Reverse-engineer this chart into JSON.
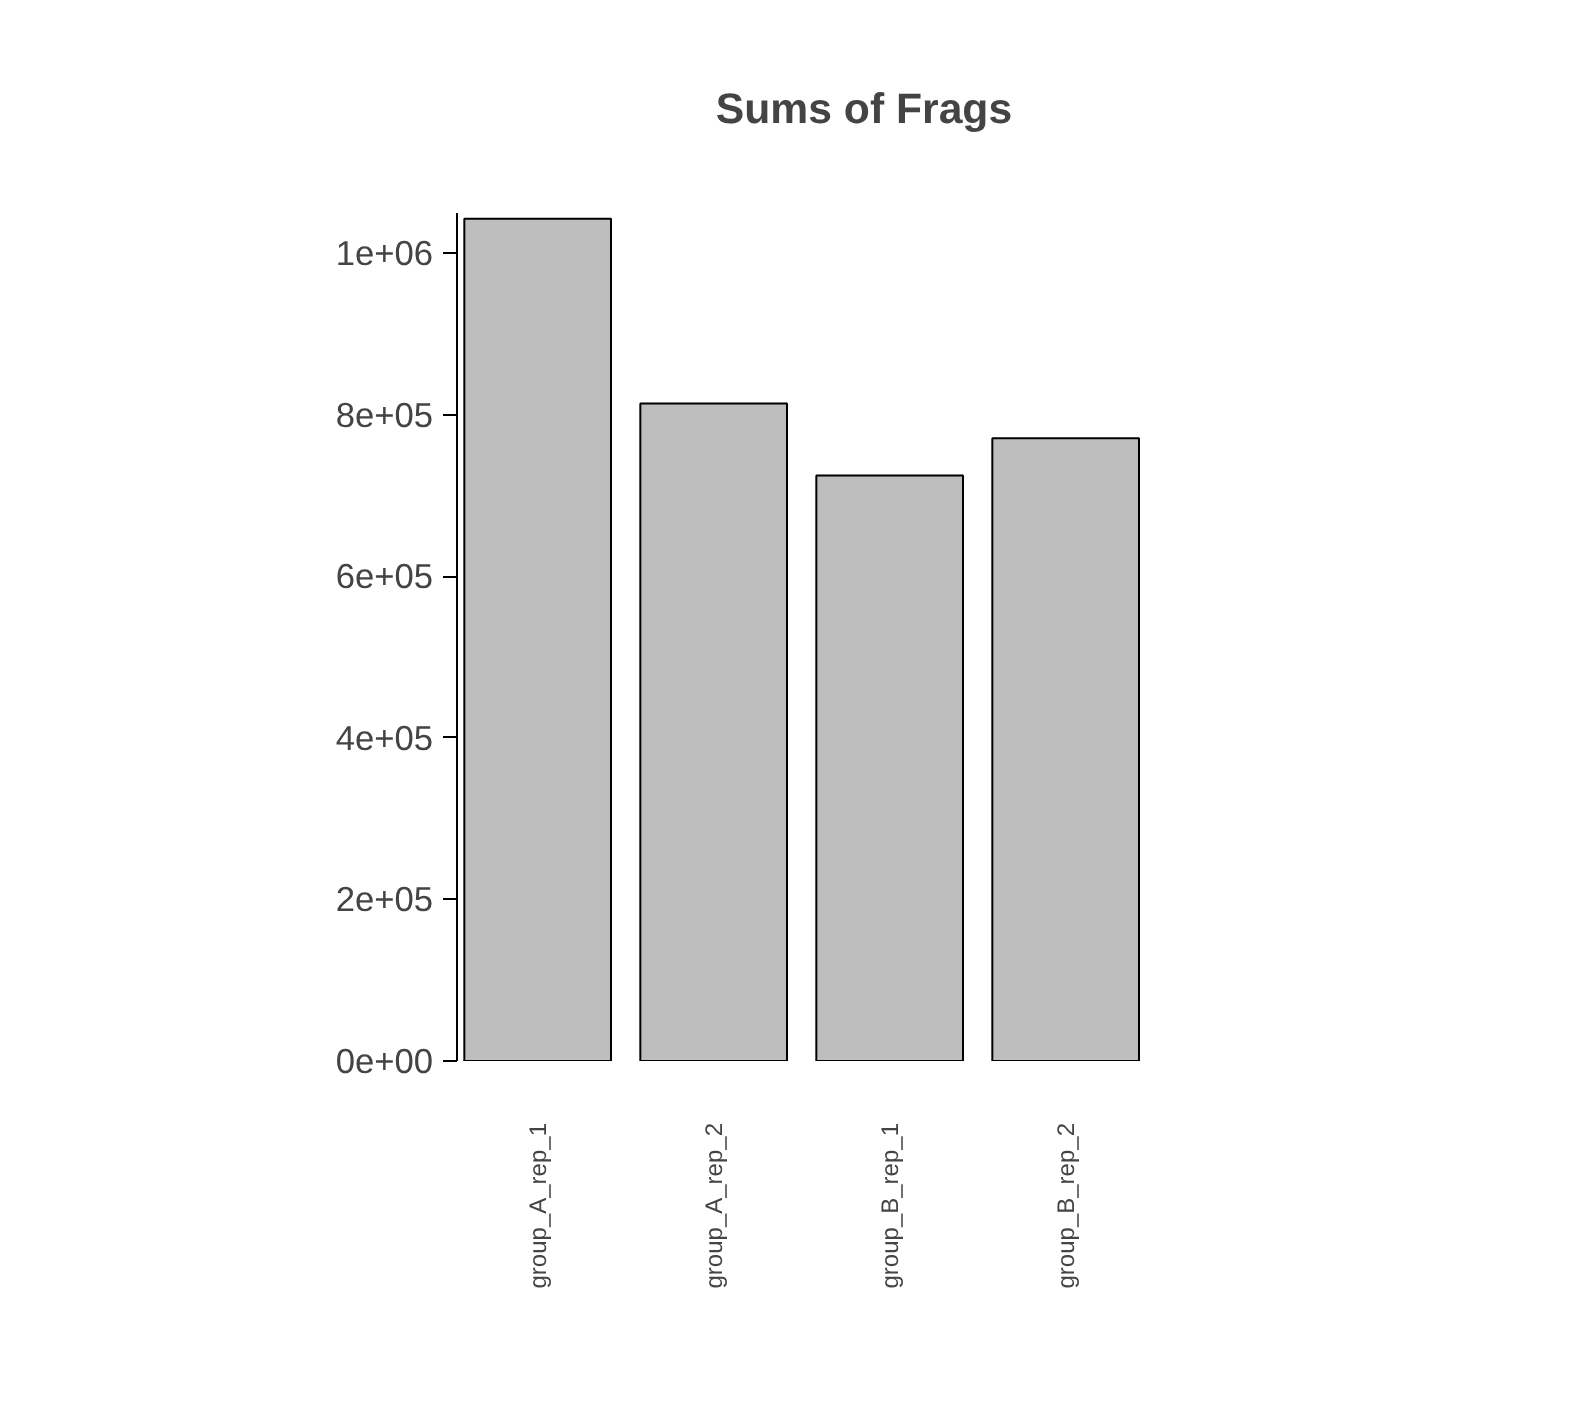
{
  "chart_data": {
    "type": "bar",
    "title": "Sums of Frags",
    "categories": [
      "group_A_rep_1",
      "group_A_rep_2",
      "group_B_rep_1",
      "group_B_rep_2"
    ],
    "values": [
      1043000,
      814000,
      725000,
      771000
    ],
    "color": "#bebebe",
    "ylim": [
      0,
      1050000
    ],
    "yticks": [
      {
        "value": 0,
        "label": "0e+00"
      },
      {
        "value": 200000,
        "label": "2e+05"
      },
      {
        "value": 400000,
        "label": "4e+05"
      },
      {
        "value": 600000,
        "label": "6e+05"
      },
      {
        "value": 800000,
        "label": "8e+05"
      },
      {
        "value": 1000000,
        "label": "1e+06"
      }
    ],
    "grid": false
  }
}
